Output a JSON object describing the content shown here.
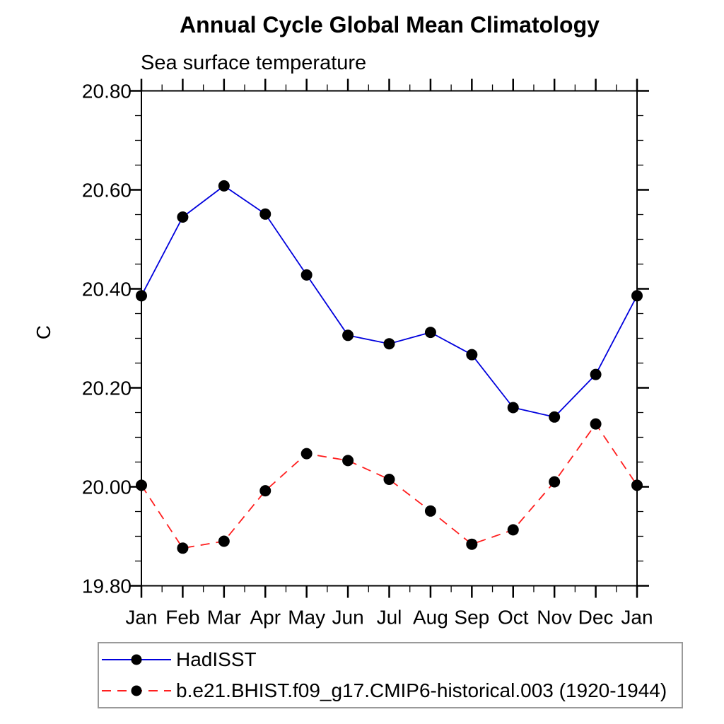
{
  "figure": {
    "title": "Annual Cycle Global Mean Climatology",
    "subtitle": "Sea surface temperature"
  },
  "chart_data": {
    "type": "line",
    "title": "Annual Cycle Global Mean Climatology",
    "subtitle": "Sea surface temperature",
    "xlabel": "",
    "ylabel": "C",
    "categories": [
      "Jan",
      "Feb",
      "Mar",
      "Apr",
      "May",
      "Jun",
      "Jul",
      "Aug",
      "Sep",
      "Oct",
      "Nov",
      "Dec",
      "Jan"
    ],
    "ylim": [
      19.8,
      20.8
    ],
    "ytick_labels": [
      "19.80",
      "20.00",
      "20.20",
      "20.40",
      "20.60",
      "20.80"
    ],
    "ytick_step": 0.2,
    "minor_ytick_step": 0.05,
    "grid": false,
    "legend_position": "bottom-left",
    "axis_color": "#000000",
    "series": [
      {
        "name": "HadISST",
        "color": "#0000dd",
        "line_style": "solid",
        "marker": "filled-circle",
        "marker_color": "#000000",
        "values": [
          20.386,
          20.545,
          20.608,
          20.551,
          20.428,
          20.306,
          20.289,
          20.312,
          20.267,
          20.16,
          20.141,
          20.227,
          20.386
        ]
      },
      {
        "name": "b.e21.BHIST.f09_g17.CMIP6-historical.003 (1920-1944)",
        "color": "#ff1f1f",
        "line_style": "dashed",
        "marker": "filled-circle",
        "marker_color": "#000000",
        "values": [
          20.003,
          19.876,
          19.89,
          19.992,
          20.067,
          20.053,
          20.015,
          19.951,
          19.884,
          19.913,
          20.01,
          20.127,
          20.003
        ]
      }
    ]
  }
}
